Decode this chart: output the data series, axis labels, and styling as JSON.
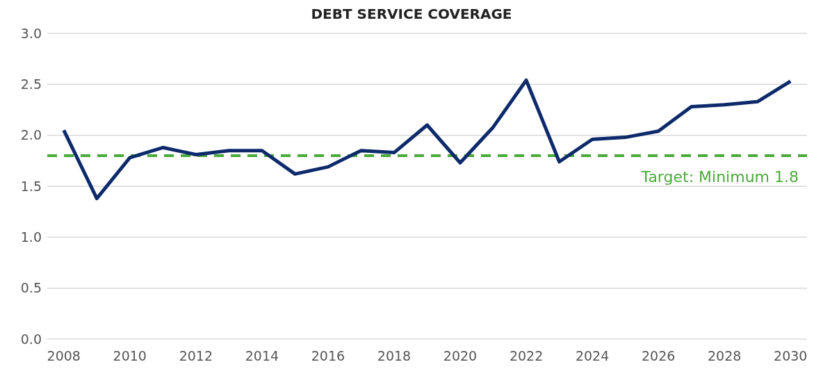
{
  "chart_data": {
    "type": "line",
    "title": "DEBT SERVICE COVERAGE",
    "x": [
      2008,
      2009,
      2010,
      2011,
      2012,
      2013,
      2014,
      2015,
      2016,
      2017,
      2018,
      2019,
      2020,
      2021,
      2022,
      2023,
      2024,
      2025,
      2026,
      2027,
      2028,
      2029,
      2030
    ],
    "series": [
      {
        "color": "#0d2a6b",
        "values": [
          2.05,
          1.38,
          1.78,
          1.88,
          1.81,
          1.85,
          1.85,
          1.62,
          1.69,
          1.85,
          1.83,
          2.1,
          1.73,
          2.08,
          2.54,
          1.74,
          1.96,
          1.98,
          2.04,
          2.28,
          2.3,
          2.33,
          2.53
        ]
      }
    ],
    "xlim": [
      2007.5,
      2030.5
    ],
    "xticks": [
      2008,
      2010,
      2012,
      2014,
      2016,
      2018,
      2020,
      2022,
      2024,
      2026,
      2028,
      2030
    ],
    "ylim": [
      0,
      3
    ],
    "yticks": [
      {
        "value": 0,
        "label": "0.0"
      },
      {
        "value": 0.5,
        "label": "0.5"
      },
      {
        "value": 1,
        "label": "1.0"
      },
      {
        "value": 1.5,
        "label": "1.5"
      },
      {
        "value": 2,
        "label": "2.0"
      },
      {
        "value": 2.5,
        "label": "2.5"
      },
      {
        "value": 3,
        "label": "3.0"
      }
    ],
    "ref_lines": [
      {
        "axis": "y",
        "value": 1.8,
        "label": "Target: Minimum 1.8",
        "color": "#4aaa3a",
        "line_style": "dashed"
      }
    ],
    "grid": "y",
    "legend": false,
    "marker": "none",
    "line_style": "solid"
  }
}
